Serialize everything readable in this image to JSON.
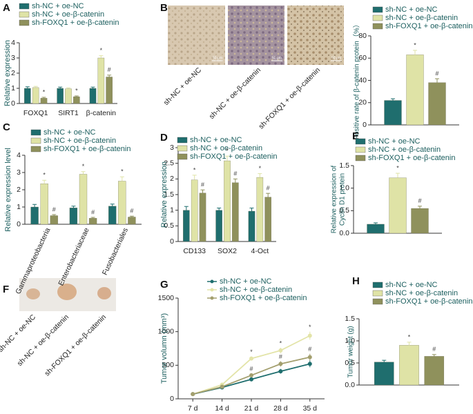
{
  "chart_data": [
    {
      "type": "bar",
      "panel": "A",
      "ylabel": "Relative expression",
      "categories": [
        "FOXQ1",
        "SIRT1",
        "β-catenin"
      ],
      "ylim": [
        0,
        4
      ],
      "yticks": [
        0,
        1,
        2,
        3,
        4
      ],
      "series": [
        {
          "name": "sh-NC + oe-NC",
          "color": "#1f6e6e",
          "values": [
            1.0,
            1.0,
            1.0
          ],
          "errors": [
            0.1,
            0.08,
            0.08
          ],
          "annotations": [
            null,
            null,
            null
          ]
        },
        {
          "name": "sh-NC + oe-β-catenin",
          "color": "#dfe3a6",
          "values": [
            1.05,
            0.97,
            3.0
          ],
          "errors": [
            0.08,
            0.06,
            0.15
          ],
          "annotations": [
            null,
            null,
            "*"
          ]
        },
        {
          "name": "sh-FOXQ1 + oe-β-catenin",
          "color": "#8f915c",
          "values": [
            0.35,
            0.45,
            1.75
          ],
          "errors": [
            0.06,
            0.05,
            0.12
          ],
          "annotations": [
            "*",
            "*",
            "#"
          ]
        }
      ]
    },
    {
      "type": "bar",
      "ylabel": "Positive rate of β-catenin protein（%）",
      "categories": [
        null
      ],
      "ylim": [
        0,
        80
      ],
      "yticks": [
        0,
        20,
        40,
        60,
        80
      ],
      "series": [
        {
          "name": "sh-NC + oe-NC",
          "color": "#1f6e6e",
          "values": [
            22
          ],
          "errors": [
            1.5
          ],
          "annotations": [
            null
          ]
        },
        {
          "name": "sh-NC + oe-β-catenin",
          "color": "#dfe3a6",
          "values": [
            63
          ],
          "errors": [
            4
          ],
          "annotations": [
            "*"
          ]
        },
        {
          "name": "sh-FOXQ1 + oe-β-catenin",
          "color": "#8f915c",
          "values": [
            38
          ],
          "errors": [
            3.5
          ],
          "annotations": [
            "#"
          ]
        }
      ]
    },
    {
      "type": "bar",
      "panel": "C",
      "ylabel": "Relative expression level",
      "categories": [
        "Gammaproteobacteria",
        "Enterobacteriaceae",
        "Fusobacteriales"
      ],
      "ylim": [
        0,
        4
      ],
      "yticks": [
        0,
        1,
        2,
        3,
        4
      ],
      "series": [
        {
          "name": "sh-NC + oe-NC",
          "color": "#1f6e6e",
          "values": [
            1.0,
            0.95,
            1.05
          ],
          "errors": [
            0.15,
            0.1,
            0.12
          ],
          "annotations": [
            null,
            null,
            null
          ]
        },
        {
          "name": "sh-NC + oe-β-catenin",
          "color": "#dfe3a6",
          "values": [
            2.35,
            2.9,
            2.5
          ],
          "errors": [
            0.2,
            0.15,
            0.25
          ],
          "annotations": [
            "*",
            "*",
            "*"
          ]
        },
        {
          "name": "sh-FOXQ1 + oe-β-catenin",
          "color": "#8f915c",
          "values": [
            0.5,
            0.35,
            0.42
          ],
          "errors": [
            0.06,
            0.05,
            0.05
          ],
          "annotations": [
            "#",
            "#",
            "#"
          ]
        }
      ]
    },
    {
      "type": "bar",
      "panel": "D",
      "ylabel": "Relative expression",
      "categories": [
        "CD133",
        "SOX2",
        "4-Oct"
      ],
      "ylim": [
        0,
        3
      ],
      "yticks": [
        0,
        0.5,
        1,
        1.5,
        2,
        2.5,
        3
      ],
      "series": [
        {
          "name": "sh-NC + oe-NC",
          "color": "#1f6e6e",
          "values": [
            1.0,
            1.0,
            0.97
          ],
          "errors": [
            0.12,
            0.07,
            0.1
          ],
          "annotations": [
            null,
            null,
            null
          ]
        },
        {
          "name": "sh-NC + oe-β-catenin",
          "color": "#dfe3a6",
          "values": [
            1.97,
            2.58,
            2.05
          ],
          "errors": [
            0.15,
            0.15,
            0.12
          ],
          "annotations": [
            "*",
            "*",
            "*"
          ]
        },
        {
          "name": "sh-FOXQ1 + oe-β-catenin",
          "color": "#8f915c",
          "values": [
            1.55,
            1.88,
            1.42
          ],
          "errors": [
            0.1,
            0.12,
            0.12
          ],
          "annotations": [
            "#",
            "#",
            "#"
          ]
        }
      ]
    },
    {
      "type": "bar",
      "panel": "E",
      "ylabel": [
        "Relative expression of",
        "Cyclin D1 protein"
      ],
      "categories": [
        null
      ],
      "ylim": [
        0,
        1.5
      ],
      "yticks": [
        {
          "value": 0,
          "label": "0.0"
        },
        {
          "value": 0.5,
          "label": "0.5"
        },
        {
          "value": 1,
          "label": "1.0"
        },
        {
          "value": 1.5,
          "label": "1.5"
        }
      ],
      "series": [
        {
          "name": "sh-NC + oe-NC",
          "color": "#1f6e6e",
          "values": [
            0.2
          ],
          "errors": [
            0.03
          ],
          "annotations": [
            null
          ]
        },
        {
          "name": "sh-NC + oe-β-catenin",
          "color": "#dfe3a6",
          "values": [
            1.23
          ],
          "errors": [
            0.1
          ],
          "annotations": [
            "*"
          ]
        },
        {
          "name": "sh-FOXQ1 + oe-β-catenin",
          "color": "#8f915c",
          "values": [
            0.55
          ],
          "errors": [
            0.05
          ],
          "annotations": [
            "#"
          ]
        }
      ]
    },
    {
      "type": "line",
      "panel": "G",
      "ylabel": "Tumor volumn (mm³)",
      "categories": [
        "7 d",
        "14 d",
        "21 d",
        "28 d",
        "35 d"
      ],
      "ylim": [
        0,
        1500
      ],
      "yticks": [
        0,
        500,
        1000,
        1500
      ],
      "series": [
        {
          "name": "sh-NC + oe-NC",
          "color": "#1f6e6e",
          "values": [
            70,
            170,
            290,
            410,
            520
          ],
          "errors": [
            8,
            15,
            30,
            35,
            50
          ],
          "annotations": [
            null,
            null,
            null,
            null,
            null
          ]
        },
        {
          "name": "sh-NC + oe-β-catenin",
          "color": "#e3e4a8",
          "values": [
            70,
            210,
            600,
            720,
            940
          ],
          "errors": [
            8,
            15,
            30,
            40,
            60
          ],
          "annotations": [
            null,
            null,
            "*",
            "*",
            "*"
          ]
        },
        {
          "name": "sh-FOXQ1 + oe-β-catenin",
          "color": "#a39f6e",
          "values": [
            70,
            180,
            350,
            520,
            620
          ],
          "errors": [
            8,
            15,
            30,
            40,
            50
          ],
          "annotations": [
            null,
            null,
            "#",
            "#",
            "#"
          ]
        }
      ]
    },
    {
      "type": "bar",
      "panel": "H",
      "ylabel": "Tumor weight (g)",
      "categories": [
        null
      ],
      "ylim": [
        0,
        1.5
      ],
      "yticks": [
        {
          "value": 0,
          "label": "0.0"
        },
        {
          "value": 0.5,
          "label": "0.5"
        },
        {
          "value": 1,
          "label": "1.0"
        },
        {
          "value": 1.5,
          "label": "1.5"
        }
      ],
      "series": [
        {
          "name": "sh-NC + oe-NC",
          "color": "#1f6e6e",
          "values": [
            0.52
          ],
          "errors": [
            0.04
          ],
          "annotations": [
            null
          ]
        },
        {
          "name": "sh-NC + oe-β-catenin",
          "color": "#dfe3a6",
          "values": [
            0.9
          ],
          "errors": [
            0.07
          ],
          "annotations": [
            "*"
          ]
        },
        {
          "name": "sh-FOXQ1 + oe-β-catenin",
          "color": "#8f915c",
          "values": [
            0.65
          ],
          "errors": [
            0.04
          ],
          "annotations": [
            "#"
          ]
        }
      ]
    }
  ],
  "image_panels": [
    {
      "letter": "B",
      "labels": [
        "sh-NC + oe-NC",
        "sh-NC + oe-β-catenin",
        "sh-FOXQ1 + oe-β-catenin"
      ],
      "scale_bar": "50 μm"
    },
    {
      "letter": "F",
      "labels": [
        "sh-NC + oe-NC",
        "sh-NC + oe-β-catenin",
        "sh-FOXQ1 + oe-β-catenin"
      ]
    }
  ]
}
